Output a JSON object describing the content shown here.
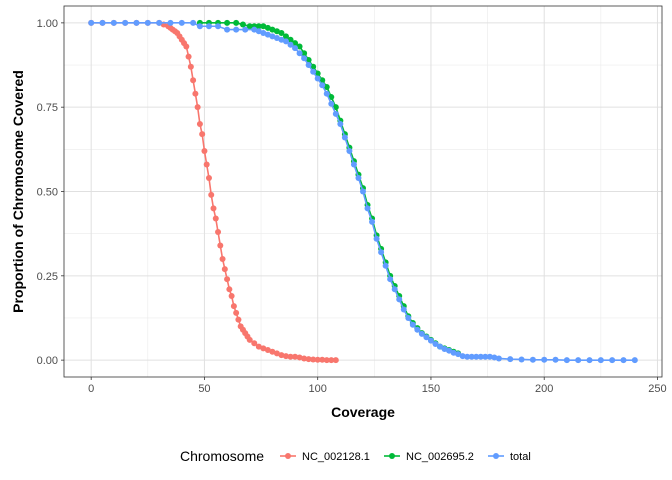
{
  "chart_data": {
    "type": "line",
    "title": "",
    "xlabel": "Coverage",
    "ylabel": "Proportion of Chromosome Covered",
    "xlim": [
      -12,
      252
    ],
    "ylim": [
      -0.05,
      1.05
    ],
    "x_ticks": [
      0,
      50,
      100,
      150,
      200,
      250
    ],
    "y_ticks": [
      0.0,
      0.25,
      0.5,
      0.75,
      1.0
    ],
    "x_tick_labels": [
      "0",
      "50",
      "100",
      "150",
      "200",
      "250"
    ],
    "y_tick_labels": [
      "0.00",
      "0.25",
      "0.50",
      "0.75",
      "1.00"
    ],
    "grid": true,
    "legend": {
      "title": "Chromosome",
      "position": "bottom"
    },
    "series": [
      {
        "name": "NC_002128.1",
        "color": "#F8766D",
        "points": [
          [
            0,
            1.0
          ],
          [
            5,
            1.0
          ],
          [
            10,
            1.0
          ],
          [
            15,
            1.0
          ],
          [
            20,
            1.0
          ],
          [
            25,
            1.0
          ],
          [
            30,
            1.0
          ],
          [
            32,
            0.995
          ],
          [
            34,
            0.99
          ],
          [
            35,
            0.985
          ],
          [
            36,
            0.98
          ],
          [
            37,
            0.975
          ],
          [
            38,
            0.97
          ],
          [
            39,
            0.96
          ],
          [
            40,
            0.95
          ],
          [
            41,
            0.94
          ],
          [
            42,
            0.93
          ],
          [
            43,
            0.9
          ],
          [
            44,
            0.87
          ],
          [
            45,
            0.83
          ],
          [
            46,
            0.79
          ],
          [
            47,
            0.75
          ],
          [
            48,
            0.7
          ],
          [
            49,
            0.67
          ],
          [
            50,
            0.62
          ],
          [
            51,
            0.58
          ],
          [
            52,
            0.54
          ],
          [
            53,
            0.49
          ],
          [
            54,
            0.45
          ],
          [
            55,
            0.42
          ],
          [
            56,
            0.38
          ],
          [
            57,
            0.34
          ],
          [
            58,
            0.3
          ],
          [
            59,
            0.27
          ],
          [
            60,
            0.24
          ],
          [
            61,
            0.21
          ],
          [
            62,
            0.19
          ],
          [
            63,
            0.16
          ],
          [
            64,
            0.14
          ],
          [
            65,
            0.12
          ],
          [
            66,
            0.1
          ],
          [
            67,
            0.09
          ],
          [
            68,
            0.08
          ],
          [
            69,
            0.07
          ],
          [
            70,
            0.06
          ],
          [
            72,
            0.05
          ],
          [
            74,
            0.04
          ],
          [
            76,
            0.035
          ],
          [
            78,
            0.03
          ],
          [
            80,
            0.025
          ],
          [
            82,
            0.02
          ],
          [
            84,
            0.015
          ],
          [
            86,
            0.012
          ],
          [
            88,
            0.01
          ],
          [
            90,
            0.01
          ],
          [
            92,
            0.008
          ],
          [
            94,
            0.005
          ],
          [
            96,
            0.003
          ],
          [
            98,
            0.002
          ],
          [
            100,
            0.001
          ],
          [
            102,
            0.001
          ],
          [
            104,
            0.0
          ],
          [
            106,
            0.0
          ],
          [
            108,
            0.0
          ]
        ]
      },
      {
        "name": "NC_002695.2",
        "color": "#00BA38",
        "points": [
          [
            48,
            1.0
          ],
          [
            52,
            1.0
          ],
          [
            56,
            1.0
          ],
          [
            60,
            1.0
          ],
          [
            64,
            1.0
          ],
          [
            67,
            0.995
          ],
          [
            70,
            0.99
          ],
          [
            72,
            0.99
          ],
          [
            74,
            0.99
          ],
          [
            76,
            0.99
          ],
          [
            78,
            0.985
          ],
          [
            80,
            0.98
          ],
          [
            82,
            0.975
          ],
          [
            84,
            0.97
          ],
          [
            86,
            0.96
          ],
          [
            88,
            0.95
          ],
          [
            90,
            0.94
          ],
          [
            92,
            0.93
          ],
          [
            94,
            0.91
          ],
          [
            96,
            0.89
          ],
          [
            98,
            0.87
          ],
          [
            100,
            0.85
          ],
          [
            102,
            0.83
          ],
          [
            104,
            0.81
          ],
          [
            106,
            0.78
          ],
          [
            108,
            0.75
          ],
          [
            110,
            0.71
          ],
          [
            112,
            0.67
          ],
          [
            114,
            0.63
          ],
          [
            116,
            0.59
          ],
          [
            118,
            0.55
          ],
          [
            120,
            0.51
          ],
          [
            122,
            0.46
          ],
          [
            124,
            0.42
          ],
          [
            126,
            0.37
          ],
          [
            128,
            0.33
          ],
          [
            130,
            0.29
          ],
          [
            132,
            0.25
          ],
          [
            134,
            0.22
          ],
          [
            136,
            0.19
          ],
          [
            138,
            0.16
          ],
          [
            140,
            0.13
          ],
          [
            142,
            0.11
          ],
          [
            144,
            0.095
          ],
          [
            146,
            0.08
          ],
          [
            148,
            0.07
          ],
          [
            150,
            0.06
          ],
          [
            152,
            0.05
          ],
          [
            154,
            0.04
          ],
          [
            156,
            0.035
          ],
          [
            158,
            0.03
          ],
          [
            160,
            0.025
          ],
          [
            162,
            0.02
          ]
        ]
      },
      {
        "name": "total",
        "color": "#619CFF",
        "points": [
          [
            0,
            1.0
          ],
          [
            5,
            1.0
          ],
          [
            10,
            1.0
          ],
          [
            15,
            1.0
          ],
          [
            20,
            1.0
          ],
          [
            25,
            1.0
          ],
          [
            30,
            1.0
          ],
          [
            35,
            1.0
          ],
          [
            40,
            1.0
          ],
          [
            45,
            1.0
          ],
          [
            48,
            0.99
          ],
          [
            52,
            0.99
          ],
          [
            56,
            0.99
          ],
          [
            60,
            0.98
          ],
          [
            64,
            0.98
          ],
          [
            68,
            0.98
          ],
          [
            72,
            0.98
          ],
          [
            74,
            0.975
          ],
          [
            76,
            0.97
          ],
          [
            78,
            0.965
          ],
          [
            80,
            0.96
          ],
          [
            82,
            0.955
          ],
          [
            84,
            0.95
          ],
          [
            86,
            0.945
          ],
          [
            88,
            0.935
          ],
          [
            90,
            0.925
          ],
          [
            92,
            0.91
          ],
          [
            94,
            0.895
          ],
          [
            96,
            0.875
          ],
          [
            98,
            0.855
          ],
          [
            100,
            0.835
          ],
          [
            102,
            0.815
          ],
          [
            104,
            0.79
          ],
          [
            106,
            0.76
          ],
          [
            108,
            0.73
          ],
          [
            110,
            0.7
          ],
          [
            112,
            0.66
          ],
          [
            114,
            0.62
          ],
          [
            116,
            0.58
          ],
          [
            118,
            0.54
          ],
          [
            120,
            0.5
          ],
          [
            122,
            0.45
          ],
          [
            124,
            0.41
          ],
          [
            126,
            0.36
          ],
          [
            128,
            0.32
          ],
          [
            130,
            0.28
          ],
          [
            132,
            0.24
          ],
          [
            134,
            0.21
          ],
          [
            136,
            0.18
          ],
          [
            138,
            0.15
          ],
          [
            140,
            0.125
          ],
          [
            142,
            0.105
          ],
          [
            144,
            0.09
          ],
          [
            146,
            0.078
          ],
          [
            148,
            0.068
          ],
          [
            150,
            0.058
          ],
          [
            152,
            0.048
          ],
          [
            154,
            0.04
          ],
          [
            156,
            0.033
          ],
          [
            158,
            0.028
          ],
          [
            160,
            0.022
          ],
          [
            162,
            0.018
          ],
          [
            164,
            0.012
          ],
          [
            166,
            0.01
          ],
          [
            168,
            0.01
          ],
          [
            170,
            0.01
          ],
          [
            172,
            0.01
          ],
          [
            174,
            0.01
          ],
          [
            176,
            0.01
          ],
          [
            178,
            0.008
          ],
          [
            180,
            0.005
          ],
          [
            185,
            0.003
          ],
          [
            190,
            0.002
          ],
          [
            195,
            0.001
          ],
          [
            200,
            0.001
          ],
          [
            205,
            0.001
          ],
          [
            210,
            0.0
          ],
          [
            215,
            0.0
          ],
          [
            220,
            0.0
          ],
          [
            225,
            0.0
          ],
          [
            230,
            0.0
          ],
          [
            235,
            0.0
          ],
          [
            240,
            0.0
          ]
        ]
      }
    ]
  }
}
